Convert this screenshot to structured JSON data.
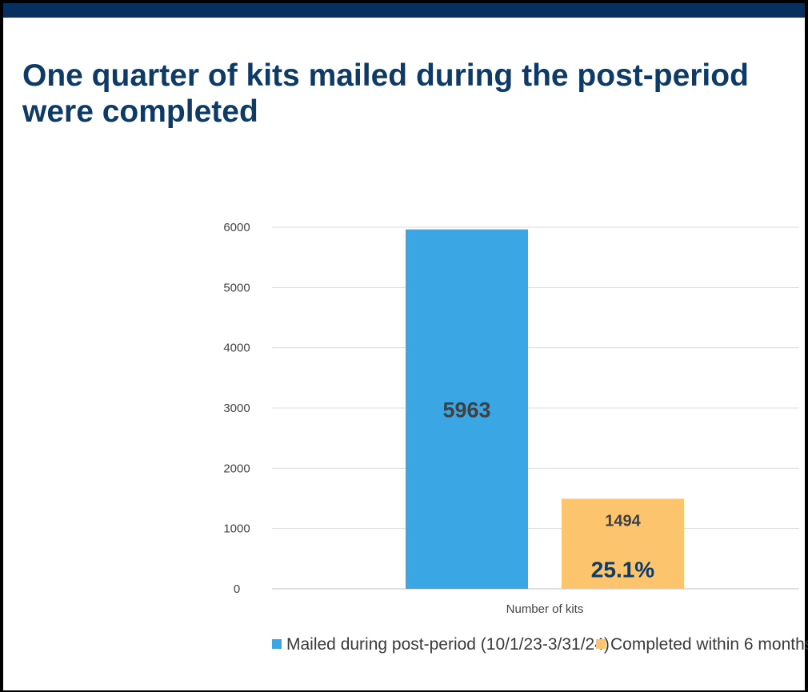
{
  "slide": {
    "title": "One quarter of kits mailed during the post-period were completed",
    "accent_color": "#07305f",
    "title_color": "#0e3a66"
  },
  "chart_data": {
    "type": "bar",
    "categories": [
      "Number of kits"
    ],
    "series": [
      {
        "name": "Mailed during post-period (10/1/23-3/31/24)",
        "values": [
          5963
        ],
        "color": "#3aa6e3",
        "data_label": "5963"
      },
      {
        "name": "Completed within 6 months",
        "values": [
          1494
        ],
        "color": "#fdc46e",
        "data_label": "1494",
        "annotation": "25.1%"
      }
    ],
    "yticks": [
      0,
      1000,
      2000,
      3000,
      4000,
      5000,
      6000
    ],
    "ylim": [
      0,
      6000
    ],
    "grid": true,
    "legend": "bottom"
  }
}
